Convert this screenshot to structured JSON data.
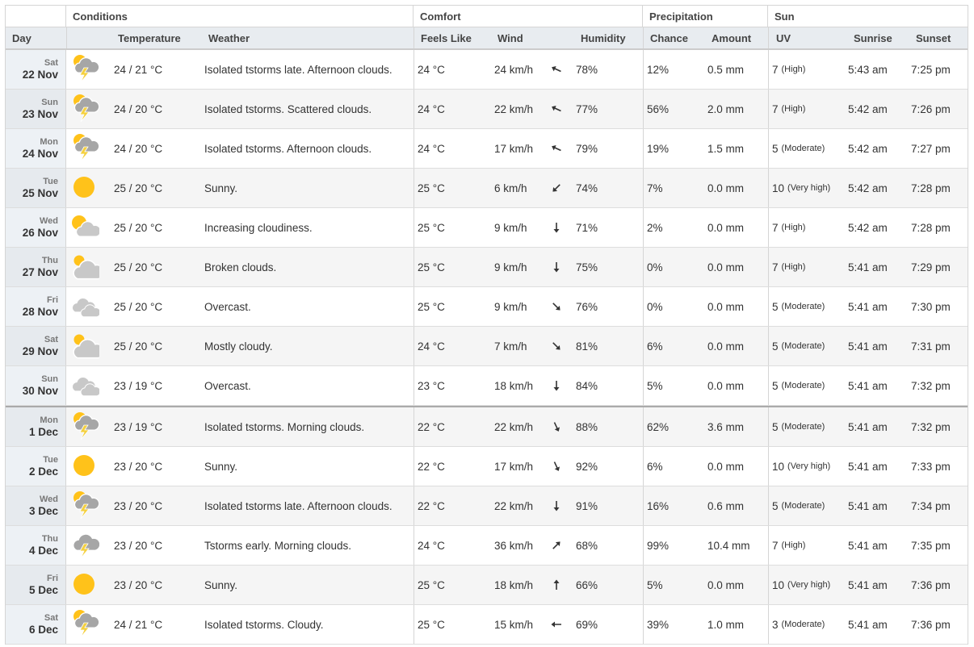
{
  "groups": {
    "conditions": "Conditions",
    "comfort": "Comfort",
    "precipitation": "Precipitation",
    "sun": "Sun"
  },
  "columns": {
    "day": "Day",
    "temperature": "Temperature",
    "weather": "Weather",
    "feels_like": "Feels Like",
    "wind": "Wind",
    "humidity": "Humidity",
    "chance": "Chance",
    "amount": "Amount",
    "uv": "UV",
    "sunrise": "Sunrise",
    "sunset": "Sunset"
  },
  "colors": {
    "sun": "#ffc21a",
    "cloud": "#c8c8c8",
    "storm_cloud": "#a6a6a6",
    "bolt": "#f4d03f"
  },
  "rows": [
    {
      "dow": "Sat",
      "date": "22 Nov",
      "icon": "tstorm-sun",
      "temp": "24 / 21 °C",
      "weather": "Isolated tstorms late. Afternoon clouds.",
      "feels": "24 °C",
      "wind": "24 km/h",
      "wind_dir_deg": 295,
      "humidity": "78%",
      "chance": "12%",
      "amount": "0.5 mm",
      "uv": "7",
      "uv_label": "(High)",
      "sunrise": "5:43 am",
      "sunset": "7:25 pm"
    },
    {
      "dow": "Sun",
      "date": "23 Nov",
      "icon": "tstorm-sun",
      "temp": "24 / 20 °C",
      "weather": "Isolated tstorms. Scattered clouds.",
      "feels": "24 °C",
      "wind": "22 km/h",
      "wind_dir_deg": 295,
      "humidity": "77%",
      "chance": "56%",
      "amount": "2.0 mm",
      "uv": "7",
      "uv_label": "(High)",
      "sunrise": "5:42 am",
      "sunset": "7:26 pm"
    },
    {
      "dow": "Mon",
      "date": "24 Nov",
      "icon": "tstorm-sun",
      "temp": "24 / 20 °C",
      "weather": "Isolated tstorms. Afternoon clouds.",
      "feels": "24 °C",
      "wind": "17 km/h",
      "wind_dir_deg": 295,
      "humidity": "79%",
      "chance": "19%",
      "amount": "1.5 mm",
      "uv": "5",
      "uv_label": "(Moderate)",
      "sunrise": "5:42 am",
      "sunset": "7:27 pm"
    },
    {
      "dow": "Tue",
      "date": "25 Nov",
      "icon": "sunny",
      "temp": "25 / 20 °C",
      "weather": "Sunny.",
      "feels": "25 °C",
      "wind": "6 km/h",
      "wind_dir_deg": 225,
      "humidity": "74%",
      "chance": "7%",
      "amount": "0.0 mm",
      "uv": "10",
      "uv_label": "(Very high)",
      "sunrise": "5:42 am",
      "sunset": "7:28 pm"
    },
    {
      "dow": "Wed",
      "date": "26 Nov",
      "icon": "partly-cloudy",
      "temp": "25 / 20 °C",
      "weather": "Increasing cloudiness.",
      "feels": "25 °C",
      "wind": "9 km/h",
      "wind_dir_deg": 180,
      "humidity": "71%",
      "chance": "2%",
      "amount": "0.0 mm",
      "uv": "7",
      "uv_label": "(High)",
      "sunrise": "5:42 am",
      "sunset": "7:28 pm"
    },
    {
      "dow": "Thu",
      "date": "27 Nov",
      "icon": "mostly-cloudy",
      "temp": "25 / 20 °C",
      "weather": "Broken clouds.",
      "feels": "25 °C",
      "wind": "9 km/h",
      "wind_dir_deg": 180,
      "humidity": "75%",
      "chance": "0%",
      "amount": "0.0 mm",
      "uv": "7",
      "uv_label": "(High)",
      "sunrise": "5:41 am",
      "sunset": "7:29 pm"
    },
    {
      "dow": "Fri",
      "date": "28 Nov",
      "icon": "overcast",
      "temp": "25 / 20 °C",
      "weather": "Overcast.",
      "feels": "25 °C",
      "wind": "9 km/h",
      "wind_dir_deg": 135,
      "humidity": "76%",
      "chance": "0%",
      "amount": "0.0 mm",
      "uv": "5",
      "uv_label": "(Moderate)",
      "sunrise": "5:41 am",
      "sunset": "7:30 pm"
    },
    {
      "dow": "Sat",
      "date": "29 Nov",
      "icon": "mostly-cloudy",
      "temp": "25 / 20 °C",
      "weather": "Mostly cloudy.",
      "feels": "24 °C",
      "wind": "7 km/h",
      "wind_dir_deg": 135,
      "humidity": "81%",
      "chance": "6%",
      "amount": "0.0 mm",
      "uv": "5",
      "uv_label": "(Moderate)",
      "sunrise": "5:41 am",
      "sunset": "7:31 pm"
    },
    {
      "dow": "Sun",
      "date": "30 Nov",
      "icon": "overcast",
      "temp": "23 / 19 °C",
      "weather": "Overcast.",
      "feels": "23 °C",
      "wind": "18 km/h",
      "wind_dir_deg": 180,
      "humidity": "84%",
      "chance": "5%",
      "amount": "0.0 mm",
      "uv": "5",
      "uv_label": "(Moderate)",
      "sunrise": "5:41 am",
      "sunset": "7:32 pm"
    },
    {
      "dow": "Mon",
      "date": "1 Dec",
      "icon": "tstorm-sun",
      "temp": "23 / 19 °C",
      "weather": "Isolated tstorms. Morning clouds.",
      "feels": "22 °C",
      "wind": "22 km/h",
      "wind_dir_deg": 155,
      "humidity": "88%",
      "chance": "62%",
      "amount": "3.6 mm",
      "uv": "5",
      "uv_label": "(Moderate)",
      "sunrise": "5:41 am",
      "sunset": "7:32 pm",
      "month_start": true
    },
    {
      "dow": "Tue",
      "date": "2 Dec",
      "icon": "sunny",
      "temp": "23 / 20 °C",
      "weather": "Sunny.",
      "feels": "22 °C",
      "wind": "17 km/h",
      "wind_dir_deg": 155,
      "humidity": "92%",
      "chance": "6%",
      "amount": "0.0 mm",
      "uv": "10",
      "uv_label": "(Very high)",
      "sunrise": "5:41 am",
      "sunset": "7:33 pm"
    },
    {
      "dow": "Wed",
      "date": "3 Dec",
      "icon": "tstorm-sun",
      "temp": "23 / 20 °C",
      "weather": "Isolated tstorms late. Afternoon clouds.",
      "feels": "22 °C",
      "wind": "22 km/h",
      "wind_dir_deg": 180,
      "humidity": "91%",
      "chance": "16%",
      "amount": "0.6 mm",
      "uv": "5",
      "uv_label": "(Moderate)",
      "sunrise": "5:41 am",
      "sunset": "7:34 pm"
    },
    {
      "dow": "Thu",
      "date": "4 Dec",
      "icon": "tstorm",
      "temp": "23 / 20 °C",
      "weather": "Tstorms early. Morning clouds.",
      "feels": "24 °C",
      "wind": "36 km/h",
      "wind_dir_deg": 45,
      "humidity": "68%",
      "chance": "99%",
      "amount": "10.4 mm",
      "uv": "7",
      "uv_label": "(High)",
      "sunrise": "5:41 am",
      "sunset": "7:35 pm"
    },
    {
      "dow": "Fri",
      "date": "5 Dec",
      "icon": "sunny",
      "temp": "23 / 20 °C",
      "weather": "Sunny.",
      "feels": "25 °C",
      "wind": "18 km/h",
      "wind_dir_deg": 0,
      "humidity": "66%",
      "chance": "5%",
      "amount": "0.0 mm",
      "uv": "10",
      "uv_label": "(Very high)",
      "sunrise": "5:41 am",
      "sunset": "7:36 pm"
    },
    {
      "dow": "Sat",
      "date": "6 Dec",
      "icon": "tstorm-sun",
      "temp": "24 / 21 °C",
      "weather": "Isolated tstorms. Cloudy.",
      "feels": "25 °C",
      "wind": "15 km/h",
      "wind_dir_deg": 270,
      "humidity": "69%",
      "chance": "39%",
      "amount": "1.0 mm",
      "uv": "3",
      "uv_label": "(Moderate)",
      "sunrise": "5:41 am",
      "sunset": "7:36 pm"
    }
  ]
}
